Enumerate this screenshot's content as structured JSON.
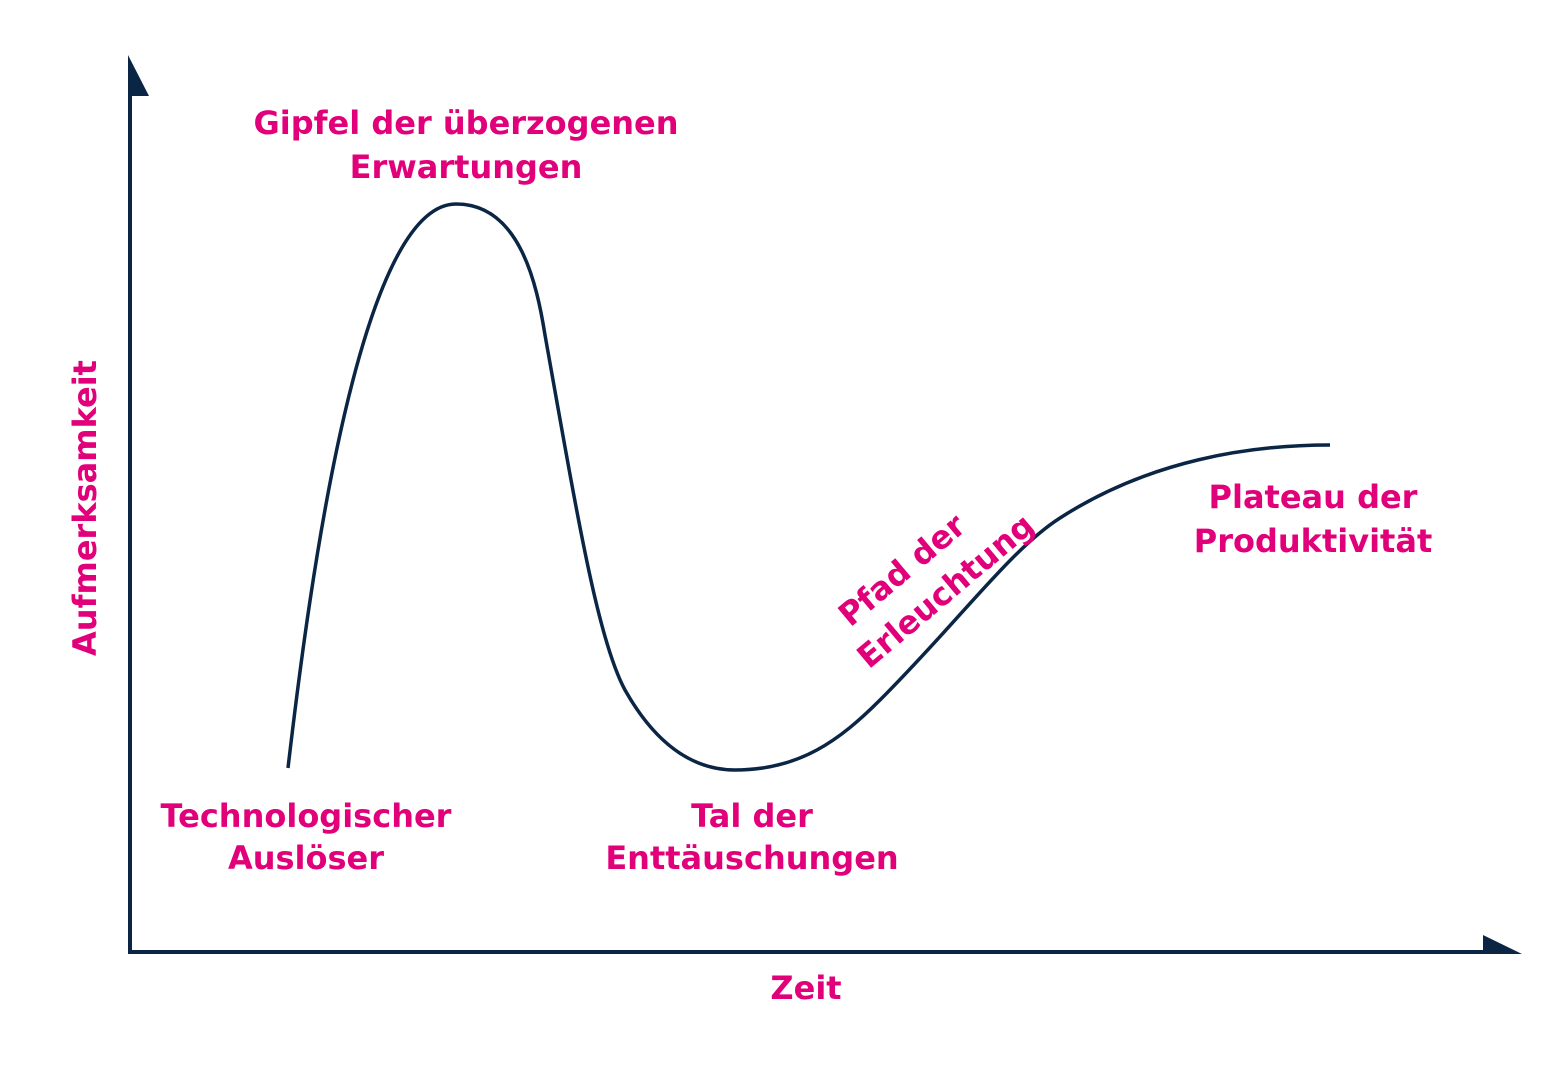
{
  "axes": {
    "y_label": "Aufmerksamkeit",
    "x_label": "Zeit"
  },
  "phases": [
    {
      "lines": [
        "Technologischer",
        "Auslöser"
      ]
    },
    {
      "lines": [
        "Gipfel der überzogenen",
        "Erwartungen"
      ]
    },
    {
      "lines": [
        "Tal der",
        "Enttäuschungen"
      ]
    },
    {
      "lines": [
        "Pfad der",
        "Erleuchtung"
      ]
    },
    {
      "lines": [
        "Plateau der",
        "Produktivität"
      ]
    }
  ]
}
